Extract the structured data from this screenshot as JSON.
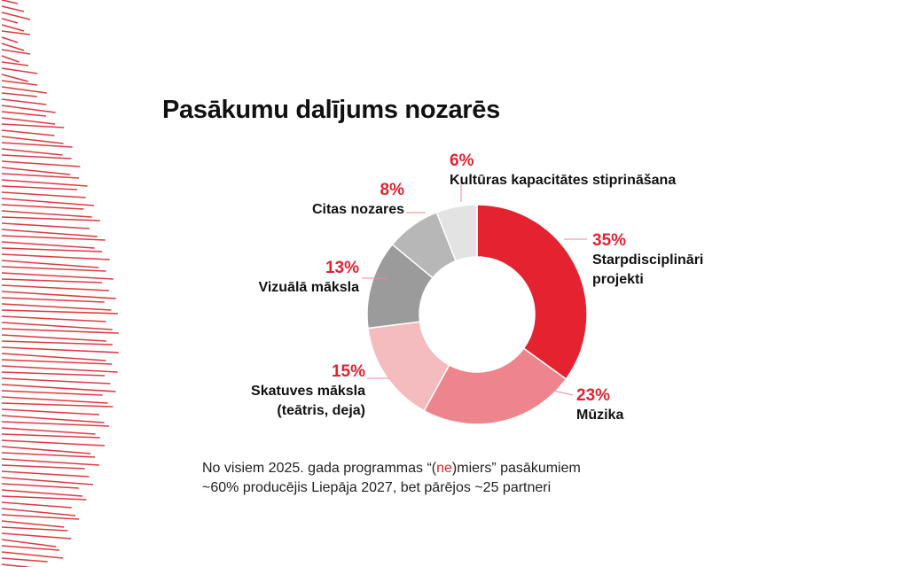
{
  "chart_data": {
    "type": "pie",
    "title": "Pasākumu dalījums nozarēs",
    "categories": [
      "Starpdisciplināri projekti",
      "Mūzika",
      "Skatuves māksla (teātris, deja)",
      "Vizuālā māksla",
      "Citas nozares",
      "Kultūras kapacitātes stiprināšana"
    ],
    "values": [
      35,
      23,
      15,
      13,
      8,
      6
    ],
    "value_labels": [
      "35%",
      "23%",
      "15%",
      "13%",
      "8%",
      "6%"
    ],
    "colors": [
      "#e42230",
      "#ef858c",
      "#f5bcbf",
      "#9b9b9b",
      "#b7b7b7",
      "#e3e3e3"
    ],
    "donut": true
  },
  "footnote": {
    "parts": [
      "No visiem 2025. gada programmas “(",
      "ne",
      ")miers” pasākumiem",
      "~60% producējis Liepāja 2027, bet pārējos ~25 partneri"
    ]
  }
}
